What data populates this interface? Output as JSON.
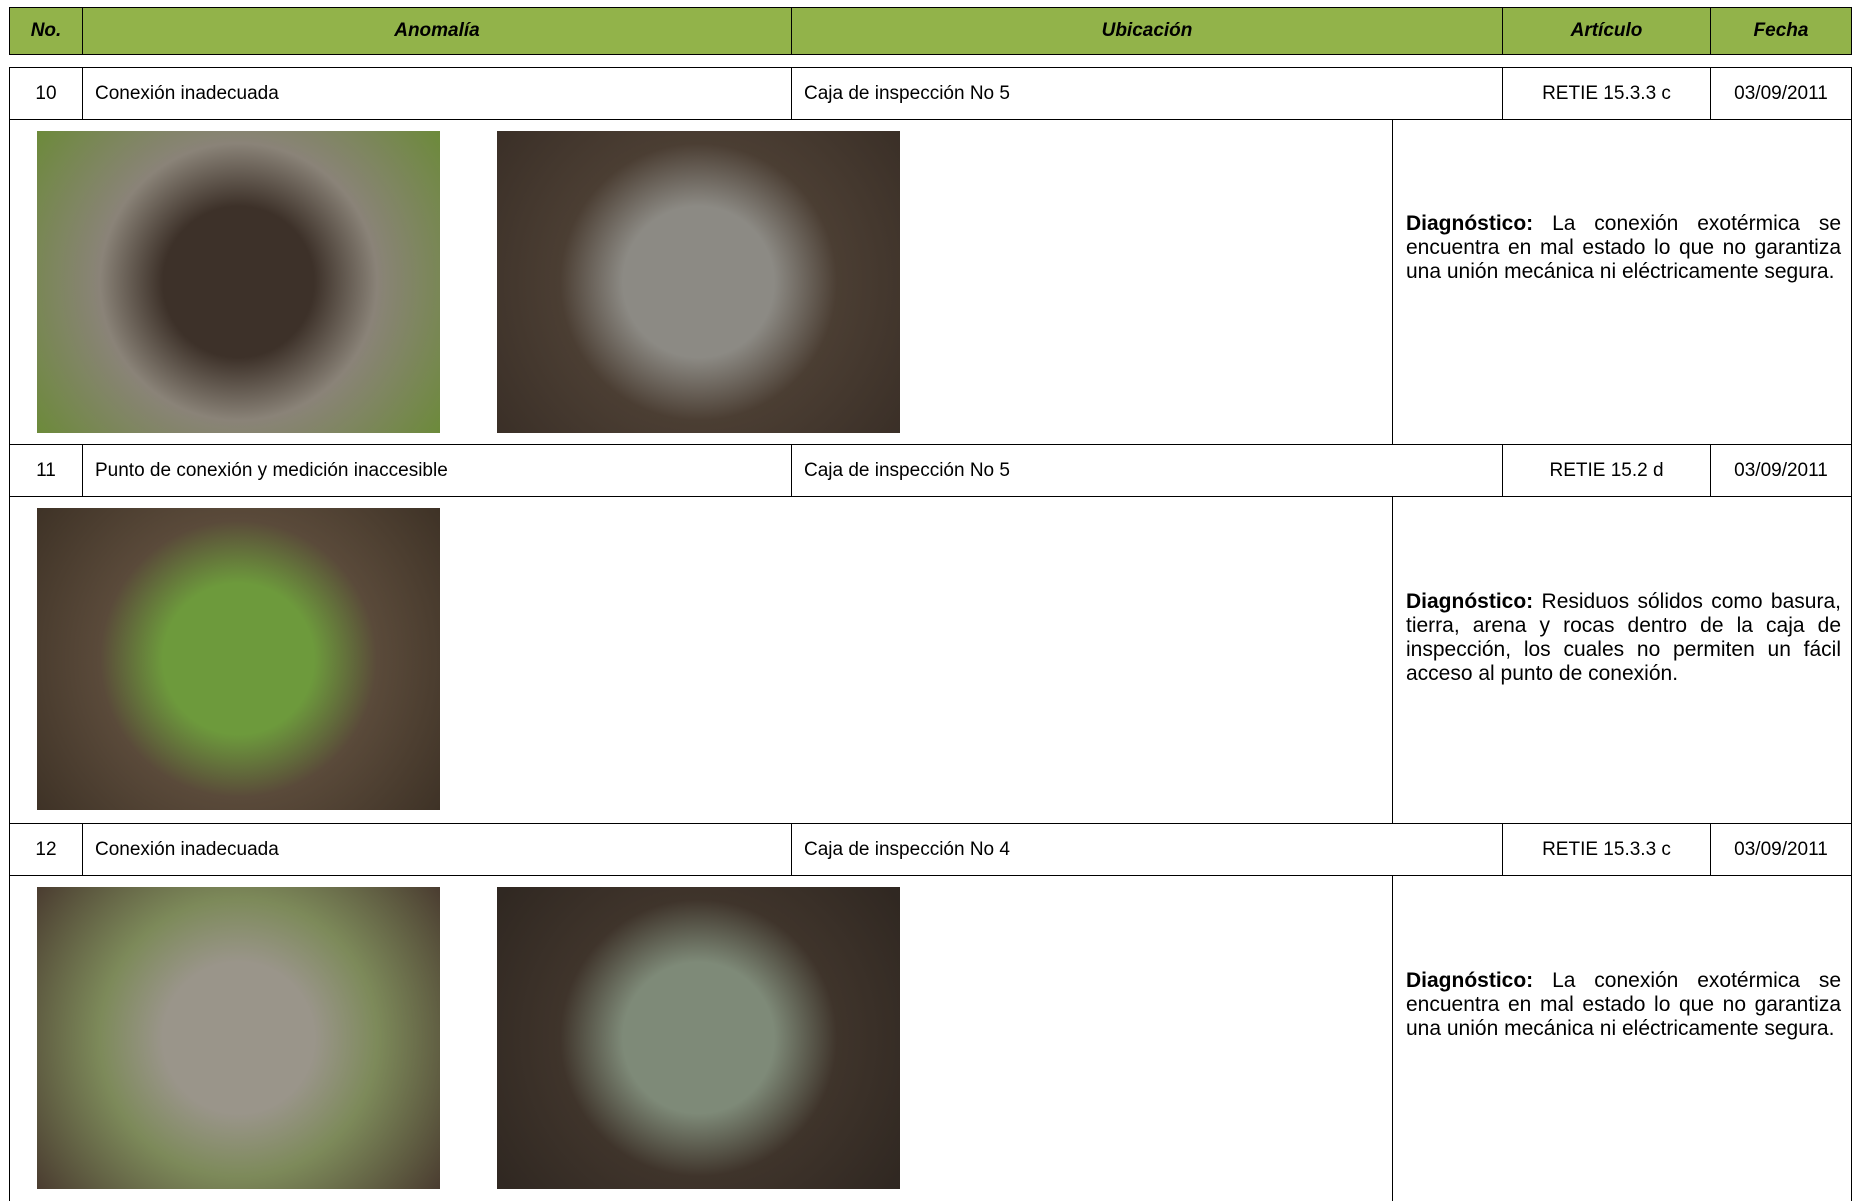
{
  "header": {
    "columns": [
      "No.",
      "Anomalía",
      "Ubicación",
      "Artículo",
      "Fecha"
    ]
  },
  "rows": [
    {
      "no": "10",
      "anomalia": "Conexión inadecuada",
      "ubicacion": "Caja de inspección  No 5",
      "articulo": "RETIE 15.3.3 c",
      "fecha": "03/09/2011",
      "diagnostico_label": "Diagnóstico:",
      "diagnostico": "La conexión exotérmica se encuentra en mal estado lo que no garantiza una unión mecánica ni eléctricamente segura."
    },
    {
      "no": "11",
      "anomalia": "Punto de conexión y medición inaccesible",
      "ubicacion": "Caja de inspección  No 5",
      "articulo": "RETIE 15.2 d",
      "fecha": "03/09/2011",
      "diagnostico_label": "Diagnóstico:",
      "diagnostico": "Residuos sólidos como basura, tierra, arena y rocas dentro de la caja de inspección, los cuales no permiten un fácil acceso  al punto de conexión."
    },
    {
      "no": "12",
      "anomalia": "Conexión inadecuada",
      "ubicacion": "Caja de inspección  No 4",
      "articulo": "RETIE 15.3.3 c",
      "fecha": "03/09/2011",
      "diagnostico_label": "Diagnóstico:",
      "diagnostico": "La conexión exotérmica se encuentra en mal estado lo que no garantiza una unión mecánica ni eléctricamente segura."
    }
  ]
}
